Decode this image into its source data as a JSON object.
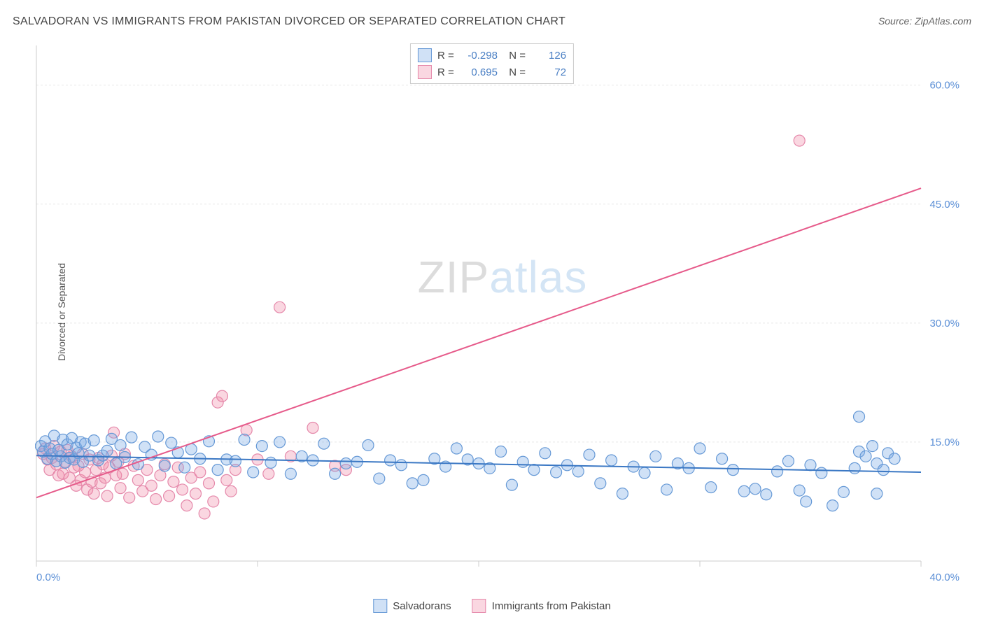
{
  "title": "SALVADORAN VS IMMIGRANTS FROM PAKISTAN DIVORCED OR SEPARATED CORRELATION CHART",
  "source": "Source: ZipAtlas.com",
  "y_axis_label": "Divorced or Separated",
  "watermark": {
    "part1": "ZIP",
    "part2": "atlas"
  },
  "chart": {
    "type": "scatter",
    "xlim": [
      0,
      40
    ],
    "ylim": [
      0,
      65
    ],
    "x_ticks": [
      0,
      10,
      20,
      30,
      40
    ],
    "x_tick_labels": [
      "0.0%",
      "",
      "",
      "",
      "40.0%"
    ],
    "y_ticks": [
      15,
      30,
      45,
      60
    ],
    "y_tick_labels": [
      "15.0%",
      "30.0%",
      "45.0%",
      "60.0%"
    ],
    "grid_color": "#e8e8e8",
    "axis_color": "#cccccc",
    "background_color": "#ffffff",
    "tick_label_color": "#5b8fd6",
    "tick_label_fontsize": 15,
    "marker_radius": 8,
    "marker_stroke_width": 1.2,
    "line_width": 2
  },
  "series": [
    {
      "name": "Salvadorans",
      "color_fill": "rgba(120,170,230,0.35)",
      "color_stroke": "#6699d6",
      "line_color": "#3b78c4",
      "R": "-0.298",
      "N": "126",
      "regression": {
        "x1": 0,
        "y1": 13.3,
        "x2": 40,
        "y2": 11.2
      },
      "points": [
        [
          0.2,
          14.5
        ],
        [
          0.3,
          13.8
        ],
        [
          0.4,
          15.1
        ],
        [
          0.5,
          12.9
        ],
        [
          0.6,
          14.2
        ],
        [
          0.7,
          13.5
        ],
        [
          0.8,
          15.8
        ],
        [
          0.9,
          12.6
        ],
        [
          1.0,
          14.0
        ],
        [
          1.1,
          13.2
        ],
        [
          1.2,
          15.3
        ],
        [
          1.3,
          12.4
        ],
        [
          1.4,
          14.7
        ],
        [
          1.5,
          13.0
        ],
        [
          1.6,
          15.5
        ],
        [
          1.7,
          12.8
        ],
        [
          1.8,
          14.3
        ],
        [
          1.9,
          13.6
        ],
        [
          2.0,
          15.0
        ],
        [
          2.1,
          12.5
        ],
        [
          2.2,
          14.8
        ],
        [
          2.4,
          13.3
        ],
        [
          2.6,
          15.2
        ],
        [
          2.8,
          12.7
        ],
        [
          3.0,
          13.3
        ],
        [
          3.2,
          13.9
        ],
        [
          3.4,
          15.4
        ],
        [
          3.6,
          12.3
        ],
        [
          3.8,
          14.6
        ],
        [
          4.0,
          13.1
        ],
        [
          4.3,
          15.6
        ],
        [
          4.6,
          12.2
        ],
        [
          4.9,
          14.4
        ],
        [
          5.2,
          13.4
        ],
        [
          5.5,
          15.7
        ],
        [
          5.8,
          12.0
        ],
        [
          6.1,
          14.9
        ],
        [
          6.4,
          13.7
        ],
        [
          6.7,
          11.8
        ],
        [
          7.0,
          14.1
        ],
        [
          7.4,
          12.9
        ],
        [
          7.8,
          15.1
        ],
        [
          8.2,
          11.5
        ],
        [
          8.6,
          12.8
        ],
        [
          9.0,
          12.6
        ],
        [
          9.4,
          15.3
        ],
        [
          9.8,
          11.2
        ],
        [
          10.2,
          14.5
        ],
        [
          10.6,
          12.4
        ],
        [
          11.0,
          15.0
        ],
        [
          11.5,
          11.0
        ],
        [
          12.0,
          13.2
        ],
        [
          12.5,
          12.7
        ],
        [
          13.0,
          14.8
        ],
        [
          13.5,
          11.0
        ],
        [
          14.0,
          12.3
        ],
        [
          14.5,
          12.5
        ],
        [
          15.0,
          14.6
        ],
        [
          15.5,
          10.4
        ],
        [
          16.0,
          12.7
        ],
        [
          16.5,
          12.1
        ],
        [
          17.0,
          9.8
        ],
        [
          17.5,
          10.2
        ],
        [
          18.0,
          12.9
        ],
        [
          18.5,
          11.9
        ],
        [
          19.0,
          14.2
        ],
        [
          19.5,
          12.8
        ],
        [
          20.0,
          12.3
        ],
        [
          20.5,
          11.7
        ],
        [
          21.0,
          13.8
        ],
        [
          21.5,
          9.6
        ],
        [
          22.0,
          12.5
        ],
        [
          22.5,
          11.5
        ],
        [
          23.0,
          13.6
        ],
        [
          23.5,
          11.2
        ],
        [
          24.0,
          12.1
        ],
        [
          24.5,
          11.3
        ],
        [
          25.0,
          13.4
        ],
        [
          25.5,
          9.8
        ],
        [
          26.0,
          12.7
        ],
        [
          26.5,
          8.5
        ],
        [
          27.0,
          11.9
        ],
        [
          27.5,
          11.1
        ],
        [
          28.0,
          13.2
        ],
        [
          28.5,
          9.0
        ],
        [
          29.0,
          12.3
        ],
        [
          29.5,
          11.7
        ],
        [
          30.0,
          14.2
        ],
        [
          30.5,
          9.3
        ],
        [
          31.0,
          12.9
        ],
        [
          31.5,
          11.5
        ],
        [
          32.0,
          8.8
        ],
        [
          32.5,
          9.1
        ],
        [
          33.0,
          8.4
        ],
        [
          33.5,
          11.3
        ],
        [
          34.0,
          12.6
        ],
        [
          34.5,
          8.9
        ],
        [
          34.8,
          7.5
        ],
        [
          35.0,
          12.1
        ],
        [
          35.5,
          11.1
        ],
        [
          36.0,
          7.0
        ],
        [
          36.5,
          8.7
        ],
        [
          37.0,
          11.7
        ],
        [
          37.2,
          13.8
        ],
        [
          37.2,
          18.2
        ],
        [
          37.5,
          13.2
        ],
        [
          37.8,
          14.5
        ],
        [
          38.0,
          8.5
        ],
        [
          38.0,
          12.3
        ],
        [
          38.3,
          11.5
        ],
        [
          38.5,
          13.6
        ],
        [
          38.8,
          12.9
        ]
      ]
    },
    {
      "name": "Immigrants from Pakistan",
      "color_fill": "rgba(240,140,170,0.35)",
      "color_stroke": "#e588aa",
      "line_color": "#e65a8a",
      "R": "0.695",
      "N": "72",
      "regression": {
        "x1": 0,
        "y1": 8.0,
        "x2": 40,
        "y2": 47.0
      },
      "points": [
        [
          0.3,
          13.5
        ],
        [
          0.4,
          14.2
        ],
        [
          0.5,
          12.8
        ],
        [
          0.6,
          11.5
        ],
        [
          0.7,
          13.0
        ],
        [
          0.8,
          14.5
        ],
        [
          0.9,
          12.2
        ],
        [
          1.0,
          10.8
        ],
        [
          1.1,
          13.8
        ],
        [
          1.2,
          11.0
        ],
        [
          1.3,
          12.5
        ],
        [
          1.4,
          14.0
        ],
        [
          1.5,
          10.5
        ],
        [
          1.6,
          13.2
        ],
        [
          1.7,
          11.8
        ],
        [
          1.8,
          9.5
        ],
        [
          1.9,
          12.0
        ],
        [
          2.0,
          10.2
        ],
        [
          2.1,
          13.5
        ],
        [
          2.2,
          11.2
        ],
        [
          2.3,
          9.0
        ],
        [
          2.4,
          12.8
        ],
        [
          2.5,
          10.0
        ],
        [
          2.6,
          8.5
        ],
        [
          2.7,
          11.5
        ],
        [
          2.8,
          13.0
        ],
        [
          2.9,
          9.8
        ],
        [
          3.0,
          12.2
        ],
        [
          3.1,
          10.5
        ],
        [
          3.2,
          8.2
        ],
        [
          3.3,
          11.8
        ],
        [
          3.4,
          13.3
        ],
        [
          3.5,
          16.2
        ],
        [
          3.6,
          10.8
        ],
        [
          3.7,
          12.5
        ],
        [
          3.8,
          9.2
        ],
        [
          3.9,
          11.0
        ],
        [
          4.0,
          13.5
        ],
        [
          4.2,
          8.0
        ],
        [
          4.4,
          12.0
        ],
        [
          4.6,
          10.2
        ],
        [
          4.8,
          8.8
        ],
        [
          5.0,
          11.5
        ],
        [
          5.2,
          9.5
        ],
        [
          5.4,
          7.8
        ],
        [
          5.6,
          10.8
        ],
        [
          5.8,
          12.2
        ],
        [
          6.0,
          8.2
        ],
        [
          6.2,
          10.0
        ],
        [
          6.4,
          11.8
        ],
        [
          6.6,
          9.0
        ],
        [
          6.8,
          7.0
        ],
        [
          7.0,
          10.5
        ],
        [
          7.2,
          8.5
        ],
        [
          7.4,
          11.2
        ],
        [
          7.6,
          6.0
        ],
        [
          7.8,
          9.8
        ],
        [
          8.0,
          7.5
        ],
        [
          8.2,
          20.0
        ],
        [
          8.4,
          20.8
        ],
        [
          8.6,
          10.2
        ],
        [
          8.8,
          8.8
        ],
        [
          9.0,
          11.5
        ],
        [
          9.5,
          16.5
        ],
        [
          10.0,
          12.8
        ],
        [
          10.5,
          11.0
        ],
        [
          11.0,
          32.0
        ],
        [
          11.5,
          13.2
        ],
        [
          12.5,
          16.8
        ],
        [
          13.5,
          12.0
        ],
        [
          14.0,
          11.5
        ],
        [
          34.5,
          53.0
        ]
      ]
    }
  ],
  "stats_box": {
    "value_color": "#4a7fc4"
  },
  "bottom_legend": {
    "items": [
      "Salvadorans",
      "Immigrants from Pakistan"
    ]
  }
}
